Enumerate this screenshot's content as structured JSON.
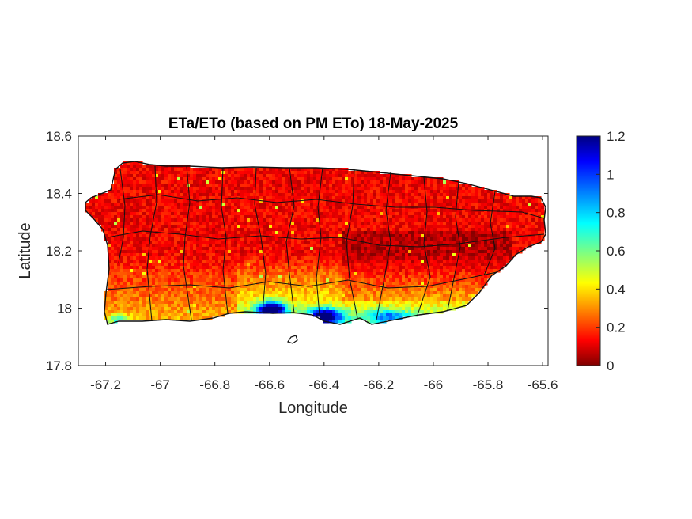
{
  "title": "ETa/ETo (based on PM ETo) 18-May-2025",
  "xlabel": "Longitude",
  "ylabel": "Latitude",
  "chart_data": {
    "type": "heatmap",
    "title": "ETa/ETo (based on PM ETo) 18-May-2025",
    "xlabel": "Longitude",
    "ylabel": "Latitude",
    "xlim": [
      -67.3,
      -65.58
    ],
    "ylim": [
      17.8,
      18.6
    ],
    "xticks": [
      -67.2,
      -67,
      -66.8,
      -66.6,
      -66.4,
      -66.2,
      -66,
      -65.8,
      -65.6
    ],
    "yticks": [
      17.8,
      18,
      18.2,
      18.4,
      18.6
    ],
    "xtick_labels": [
      "-67.2",
      "-67",
      "-66.8",
      "-66.6",
      "-66.4",
      "-66.2",
      "-66",
      "-65.8",
      "-65.6"
    ],
    "ytick_labels": [
      "17.8",
      "18",
      "18.2",
      "18.4",
      "18.6"
    ],
    "colorbar": {
      "range": [
        0,
        1.2
      ],
      "ticks": [
        0,
        0.2,
        0.4,
        0.6,
        0.8,
        1,
        1.2
      ],
      "tick_labels": [
        "0",
        "0.2",
        "0.4",
        "0.6",
        "0.8",
        "1",
        "1.2"
      ],
      "colormap": "jet"
    },
    "grid": false
  },
  "colors": {
    "background": "#ffffff",
    "axes_line": "#262626",
    "boundary": "#111111"
  }
}
